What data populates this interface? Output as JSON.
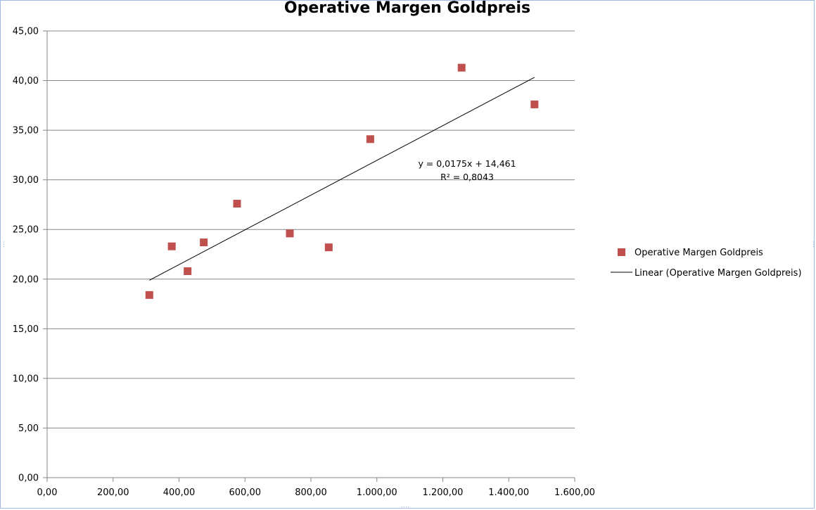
{
  "chart_data": {
    "type": "scatter",
    "title": "Operative Margen Goldpreis",
    "xlabel": "",
    "ylabel": "",
    "xlim": [
      0,
      1600
    ],
    "ylim": [
      0,
      45
    ],
    "x_ticks": [
      0,
      200,
      400,
      600,
      800,
      1000,
      1200,
      1400,
      1600
    ],
    "x_tick_labels": [
      "0,00",
      "200,00",
      "400,00",
      "600,00",
      "800,00",
      "1.000,00",
      "1.200,00",
      "1.400,00",
      "1.600,00"
    ],
    "y_ticks": [
      0,
      5,
      10,
      15,
      20,
      25,
      30,
      35,
      40,
      45
    ],
    "y_tick_labels": [
      "0,00",
      "5,00",
      "10,00",
      "15,00",
      "20,00",
      "25,00",
      "30,00",
      "35,00",
      "40,00",
      "45,00"
    ],
    "grid": "horizontal",
    "legend_position": "right",
    "series": [
      {
        "name": "Operative Margen Goldpreis",
        "marker": "square",
        "color": "#C0504D",
        "points": [
          {
            "x": 310,
            "y": 18.4
          },
          {
            "x": 378,
            "y": 23.3
          },
          {
            "x": 426,
            "y": 20.8
          },
          {
            "x": 475,
            "y": 23.7
          },
          {
            "x": 576,
            "y": 27.6
          },
          {
            "x": 736,
            "y": 24.6
          },
          {
            "x": 854,
            "y": 23.2
          },
          {
            "x": 980,
            "y": 34.1
          },
          {
            "x": 1257,
            "y": 41.3
          },
          {
            "x": 1478,
            "y": 37.6
          }
        ]
      }
    ],
    "trendline": {
      "name": "Linear (Operative Margen Goldpreis)",
      "type": "linear",
      "slope": 0.0175,
      "intercept": 14.461,
      "x_range": [
        310,
        1478
      ],
      "color": "#000000",
      "equation_label": "y = 0,0175x + 14,461",
      "r2_label": "R² = 0,8043"
    }
  }
}
